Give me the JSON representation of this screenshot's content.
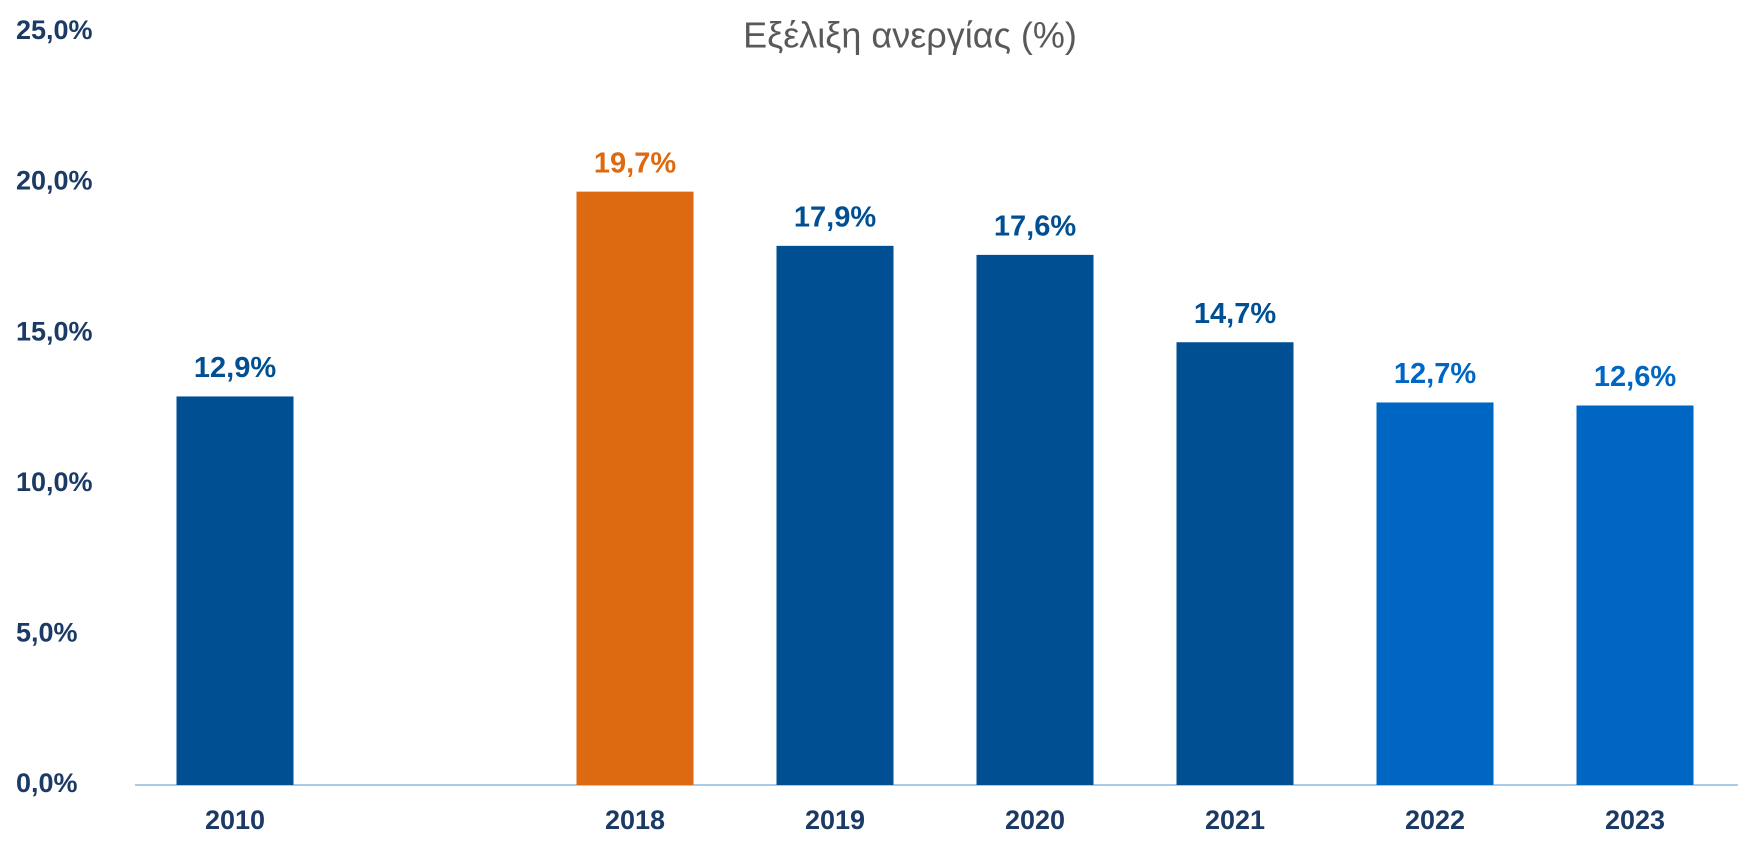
{
  "chart_data": {
    "type": "bar",
    "title": "Εξέλιξη ανεργίας (%)",
    "categories": [
      "2010",
      null,
      "2018",
      "2019",
      "2020",
      "2021",
      "2022",
      "2023"
    ],
    "values": [
      12.9,
      null,
      19.7,
      17.9,
      17.6,
      14.7,
      12.7,
      12.6
    ],
    "value_labels": [
      "12,9%",
      null,
      "19,7%",
      "17,9%",
      "17,6%",
      "14,7%",
      "12,7%",
      "12,6%"
    ],
    "colors": [
      "#004f93",
      null,
      "#dd6a10",
      "#004f93",
      "#004f93",
      "#004f93",
      "#0066c4",
      "#0066c4"
    ],
    "ylim": [
      0,
      25
    ],
    "yticks": [
      {
        "value": 0,
        "label": "0,0%"
      },
      {
        "value": 5,
        "label": "5,0%"
      },
      {
        "value": 10,
        "label": "10,0%"
      },
      {
        "value": 15,
        "label": "15,0%"
      },
      {
        "value": 20,
        "label": "20,0%"
      },
      {
        "value": 25,
        "label": "25,0%"
      }
    ],
    "grid": false
  }
}
